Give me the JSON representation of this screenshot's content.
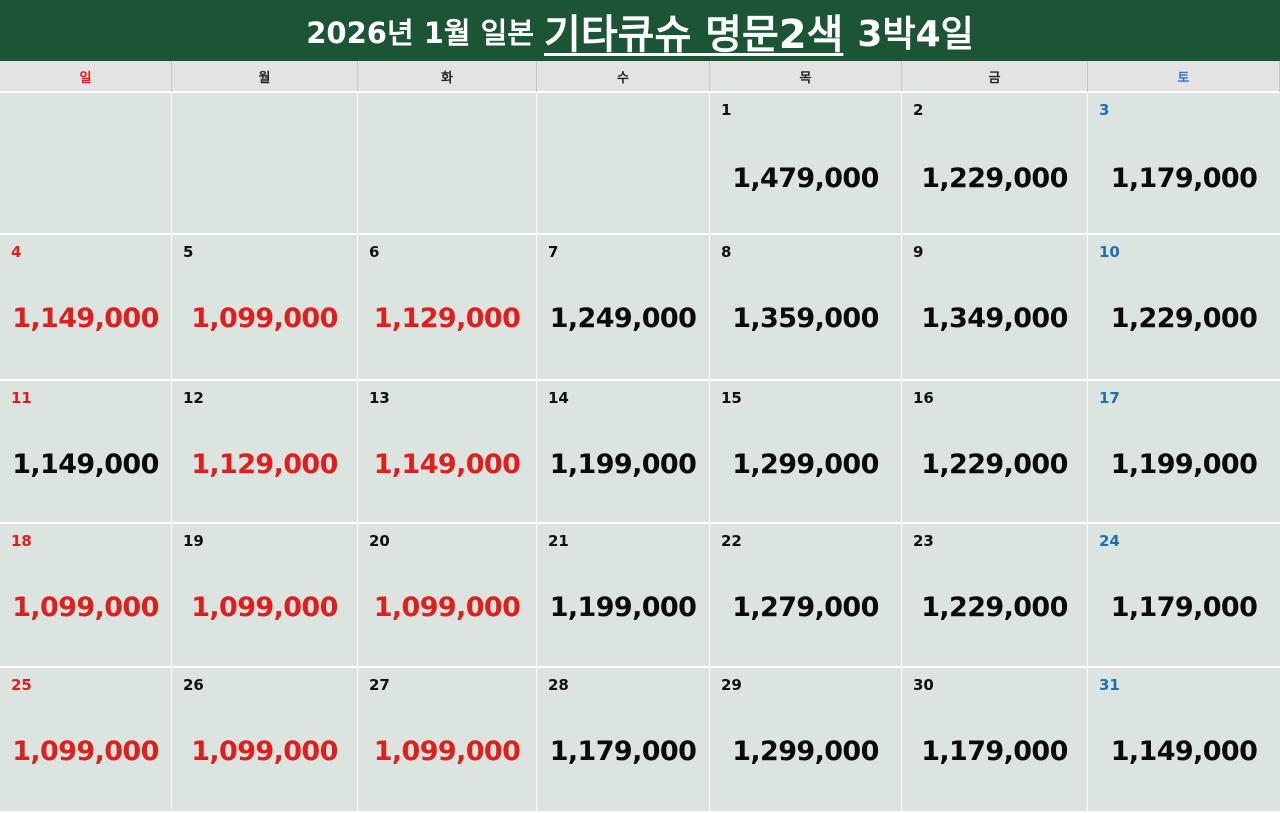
{
  "title": {
    "part1": "2026년 1월 일본",
    "part2": "기타큐슈 명문2색",
    "part3": "3박4일"
  },
  "weekdays": [
    "일",
    "월",
    "화",
    "수",
    "목",
    "금",
    "토"
  ],
  "colors": {
    "banner": "#1b5535",
    "cell": "#dbe4de",
    "header": "#e3e3e3",
    "red": "#e01e1e",
    "blue": "#1f6fb5"
  },
  "weeks": [
    [
      null,
      null,
      null,
      null,
      {
        "day": "1",
        "price": "1,479,000",
        "price_red": false
      },
      {
        "day": "2",
        "price": "1,229,000",
        "price_red": false
      },
      {
        "day": "3",
        "price": "1,179,000",
        "price_red": false
      }
    ],
    [
      {
        "day": "4",
        "price": "1,149,000",
        "price_red": true
      },
      {
        "day": "5",
        "price": "1,099,000",
        "price_red": true
      },
      {
        "day": "6",
        "price": "1,129,000",
        "price_red": true
      },
      {
        "day": "7",
        "price": "1,249,000",
        "price_red": false
      },
      {
        "day": "8",
        "price": "1,359,000",
        "price_red": false
      },
      {
        "day": "9",
        "price": "1,349,000",
        "price_red": false
      },
      {
        "day": "10",
        "price": "1,229,000",
        "price_red": false
      }
    ],
    [
      {
        "day": "11",
        "price": "1,149,000",
        "price_red": false
      },
      {
        "day": "12",
        "price": "1,129,000",
        "price_red": true
      },
      {
        "day": "13",
        "price": "1,149,000",
        "price_red": true
      },
      {
        "day": "14",
        "price": "1,199,000",
        "price_red": false
      },
      {
        "day": "15",
        "price": "1,299,000",
        "price_red": false
      },
      {
        "day": "16",
        "price": "1,229,000",
        "price_red": false
      },
      {
        "day": "17",
        "price": "1,199,000",
        "price_red": false
      }
    ],
    [
      {
        "day": "18",
        "price": "1,099,000",
        "price_red": true
      },
      {
        "day": "19",
        "price": "1,099,000",
        "price_red": true
      },
      {
        "day": "20",
        "price": "1,099,000",
        "price_red": true
      },
      {
        "day": "21",
        "price": "1,199,000",
        "price_red": false
      },
      {
        "day": "22",
        "price": "1,279,000",
        "price_red": false
      },
      {
        "day": "23",
        "price": "1,229,000",
        "price_red": false
      },
      {
        "day": "24",
        "price": "1,179,000",
        "price_red": false
      }
    ],
    [
      {
        "day": "25",
        "price": "1,099,000",
        "price_red": true
      },
      {
        "day": "26",
        "price": "1,099,000",
        "price_red": true
      },
      {
        "day": "27",
        "price": "1,099,000",
        "price_red": true
      },
      {
        "day": "28",
        "price": "1,179,000",
        "price_red": false
      },
      {
        "day": "29",
        "price": "1,299,000",
        "price_red": false
      },
      {
        "day": "30",
        "price": "1,179,000",
        "price_red": false
      },
      {
        "day": "31",
        "price": "1,149,000",
        "price_red": false
      }
    ]
  ]
}
